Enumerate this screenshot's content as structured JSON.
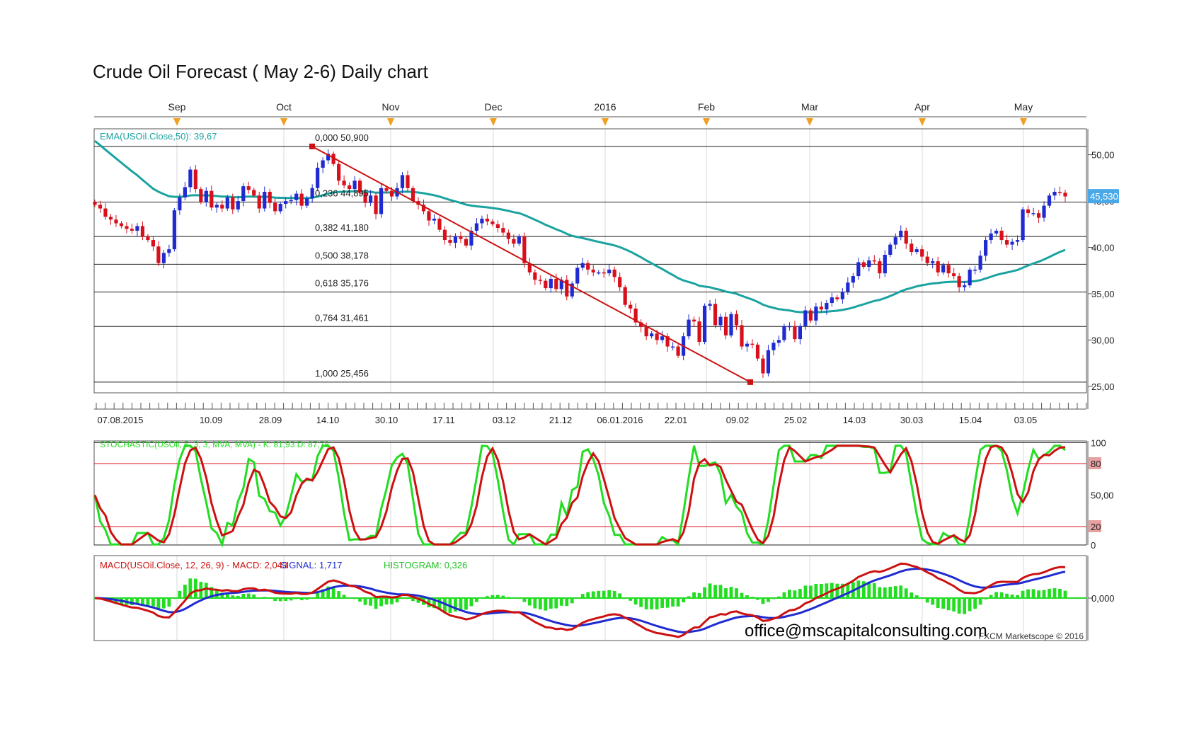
{
  "chart_title": "Crude Oil Forecast ( May 2-6) Daily chart",
  "watermark": "FXCM Marketscope © 2016",
  "email": "office@mscapitalconsulting.com",
  "colors": {
    "bull_candle": "#1f2bd0",
    "bear_candle": "#d8101c",
    "ema": "#1aa3a0",
    "fib_line": "#222222",
    "trend_line": "#cc1111",
    "stoch_k": "#22dd22",
    "stoch_d": "#cc1111",
    "macd": "#cc1111",
    "signal": "#1f2bd0",
    "histogram": "#22dd22",
    "grid": "#d8d8d8",
    "price_tag_bg": "#4aa8e8"
  },
  "chart_data": [
    {
      "type": "candlestick",
      "title": "Crude Oil Forecast ( May 2-6) Daily chart",
      "instrument": "USOil",
      "month_labels": [
        "Sep",
        "Oct",
        "Nov",
        "Dec",
        "2016",
        "Feb",
        "Mar",
        "Apr",
        "May"
      ],
      "date_labels": [
        "07.08.2015",
        "10.09",
        "28.09",
        "14.10",
        "30.10",
        "17.11",
        "03.12",
        "21.12",
        "06.01.2016",
        "22.01",
        "09.02",
        "25.02",
        "14.03",
        "30.03",
        "15.04",
        "03.05"
      ],
      "y_ticks": [
        "50,00",
        "45,00",
        "40,00",
        "35,00",
        "30,00",
        "25,00"
      ],
      "ylim": [
        24.3,
        52.8
      ],
      "current_price": "45,530",
      "ema_label": "EMA(USOil.Close,50): 39,67",
      "fibonacci": [
        {
          "label": "0,000 50,900",
          "value": 50.9
        },
        {
          "label": "0,236 44,895",
          "value": 44.895
        },
        {
          "label": "0,382 41,180",
          "value": 41.18
        },
        {
          "label": "0,500 38,178",
          "value": 38.178
        },
        {
          "label": "0,618 35,176",
          "value": 35.176
        },
        {
          "label": "0,764 31,461",
          "value": 31.461
        },
        {
          "label": "1,000 25,456",
          "value": 25.456
        }
      ],
      "trendline": {
        "from": {
          "date": "2015-10-09",
          "value": 50.9
        },
        "to": {
          "date": "2016-02-11",
          "value": 25.456
        }
      },
      "closes": [
        44.6,
        44.2,
        43.3,
        43.0,
        42.6,
        42.3,
        42.0,
        41.8,
        42.3,
        41.2,
        40.8,
        40.1,
        38.3,
        39.4,
        39.8,
        44.0,
        45.4,
        46.5,
        48.4,
        46.3,
        44.9,
        46.1,
        44.3,
        44.6,
        44.2,
        45.4,
        44.1,
        45.0,
        46.6,
        46.2,
        45.6,
        44.2,
        46.0,
        44.8,
        43.9,
        44.7,
        45.0,
        45.1,
        45.8,
        44.5,
        45.3,
        46.4,
        48.6,
        49.4,
        50.1,
        49.0,
        47.2,
        46.7,
        46.3,
        47.2,
        45.9,
        44.8,
        45.6,
        43.6,
        46.4,
        46.1,
        45.5,
        46.4,
        47.8,
        46.4,
        45.0,
        44.6,
        43.9,
        42.9,
        43.1,
        41.9,
        40.8,
        40.5,
        41.2,
        40.9,
        40.2,
        41.8,
        42.6,
        43.1,
        42.8,
        42.5,
        42.1,
        41.6,
        40.9,
        40.4,
        41.2,
        38.3,
        37.3,
        36.5,
        36.4,
        35.6,
        36.6,
        35.5,
        36.5,
        34.7,
        36.1,
        37.8,
        38.3,
        37.6,
        37.3,
        37.3,
        37.2,
        37.6,
        36.8,
        35.7,
        33.8,
        33.4,
        31.9,
        31.4,
        30.4,
        30.7,
        30.0,
        30.4,
        29.3,
        29.3,
        28.3,
        30.4,
        32.2,
        32.0,
        29.8,
        33.7,
        33.9,
        31.6,
        32.5,
        30.5,
        32.8,
        31.6,
        29.3,
        29.6,
        29.5,
        28.0,
        26.4,
        28.9,
        29.7,
        30.0,
        31.5,
        31.5,
        30.1,
        31.5,
        33.2,
        32.1,
        33.6,
        33.3,
        34.0,
        34.6,
        34.4,
        35.2,
        36.2,
        36.9,
        38.4,
        37.9,
        38.6,
        38.5,
        37.2,
        39.2,
        40.3,
        41.1,
        41.8,
        40.4,
        39.5,
        39.8,
        39.0,
        38.3,
        38.5,
        37.3,
        38.1,
        37.2,
        36.9,
        35.7,
        35.9,
        37.6,
        37.6,
        39.1,
        40.8,
        41.5,
        41.8,
        40.8,
        40.3,
        40.6,
        40.8,
        44.1,
        43.7,
        43.7,
        43.2,
        44.5,
        45.6,
        46.0,
        45.9,
        45.5
      ],
      "ema_close_50": 39.67,
      "stochastic": {
        "label": "STOCHASTIC(USOil, 5, 3, 3, MVA, MVA) - K: 81,93 D: 87,78",
        "k": 81.93,
        "d": 87.78,
        "levels": [
          20,
          80
        ],
        "y_ticks": [
          "100",
          "80",
          "50,00",
          "20",
          "0"
        ]
      },
      "macd": {
        "label_prefix": "MACD(USOil.Close, 12, 26, 9) -  MACD: 2,043",
        "signal_label": "SIGNAL: 1,717",
        "histogram_label": "HISTOGRAM: 0,326",
        "macd": 2.043,
        "signal": 1.717,
        "histogram": 0.326,
        "y_ticks": [
          "0,000"
        ]
      }
    }
  ]
}
